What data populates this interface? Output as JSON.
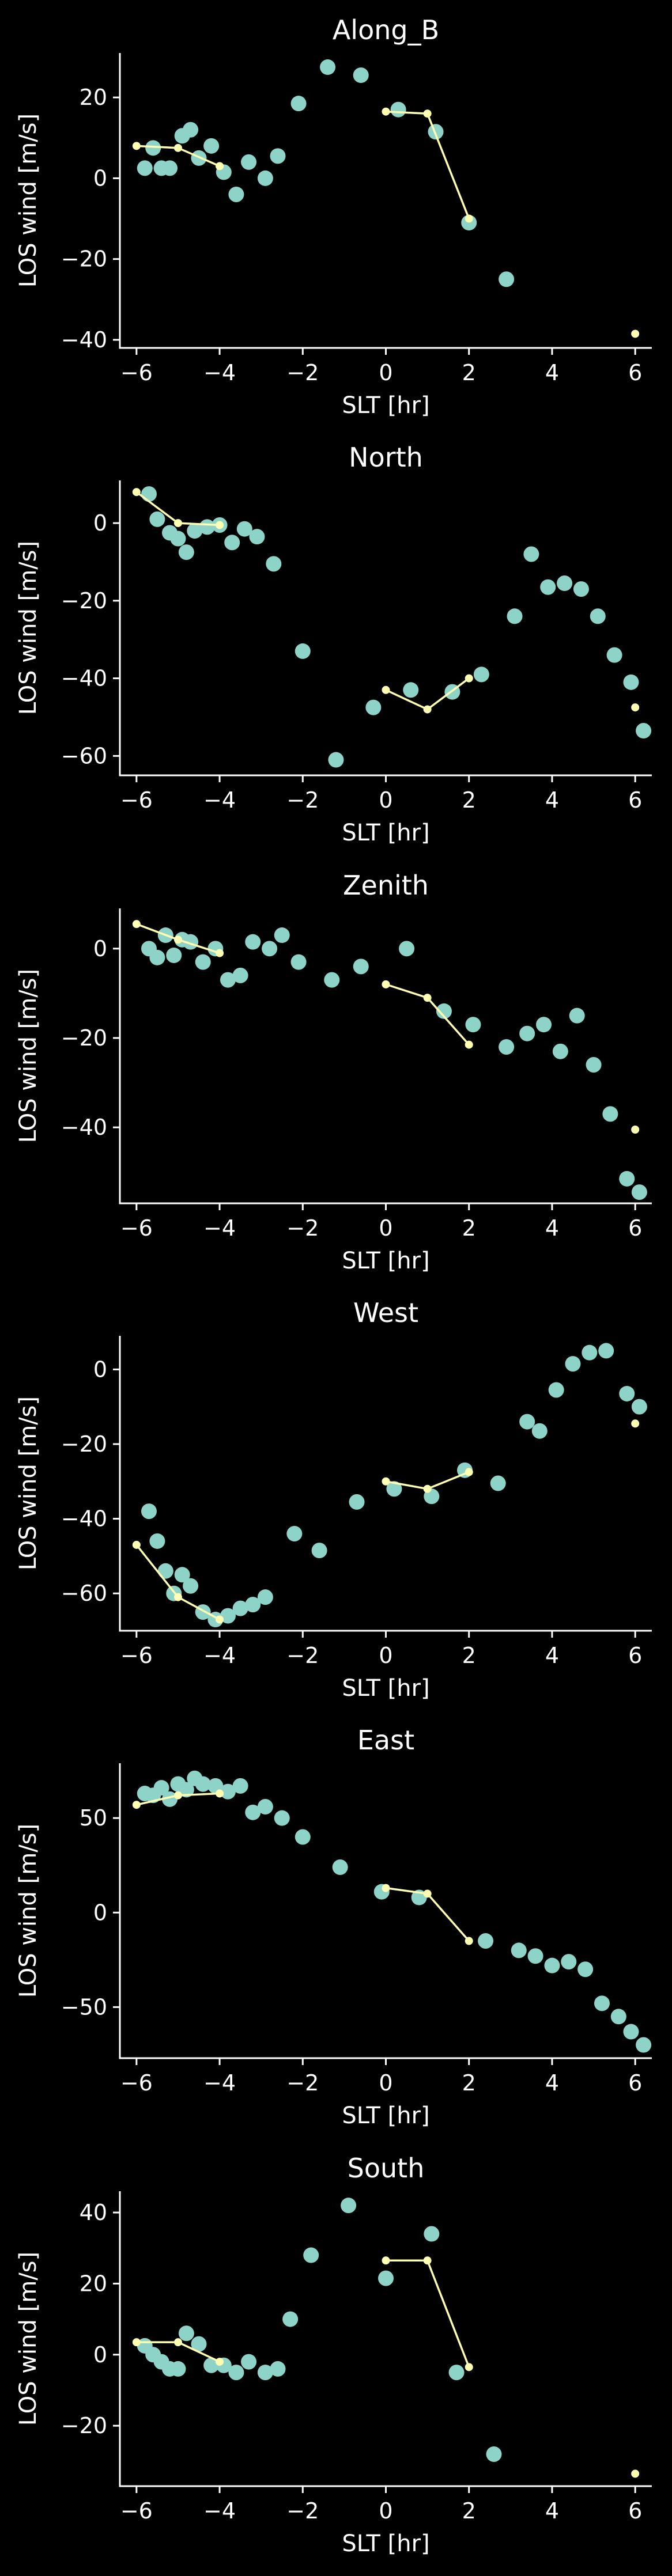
{
  "colors": {
    "background": "#000000",
    "axes": "#ffffff",
    "scatter": "#8dd3c7",
    "line": "#ffffb3"
  },
  "chart_data": [
    {
      "type": "scatter",
      "title": "Along_B",
      "xlabel": "SLT [hr]",
      "ylabel": "LOS wind [m/s]",
      "xlim": [
        -6.4,
        6.4
      ],
      "ylim": [
        -42,
        31
      ],
      "xticks": [
        -6,
        -4,
        -2,
        0,
        2,
        4,
        6
      ],
      "yticks": [
        -40,
        -20,
        0,
        20
      ],
      "scatter": [
        [
          -5.8,
          2.5
        ],
        [
          -5.6,
          7.5
        ],
        [
          -5.4,
          2.5
        ],
        [
          -5.2,
          2.5
        ],
        [
          -4.9,
          10.5
        ],
        [
          -4.7,
          12
        ],
        [
          -4.5,
          5
        ],
        [
          -4.2,
          8
        ],
        [
          -3.9,
          1.5
        ],
        [
          -3.6,
          -4
        ],
        [
          -3.3,
          4
        ],
        [
          -2.9,
          0
        ],
        [
          -2.6,
          5.5
        ],
        [
          -2.1,
          18.5
        ],
        [
          -1.4,
          27.5
        ],
        [
          -0.6,
          25.5
        ],
        [
          0.3,
          17
        ],
        [
          1.2,
          11.5
        ],
        [
          2.0,
          -11
        ],
        [
          2.9,
          -25
        ]
      ],
      "line": [
        [
          -6,
          8
        ],
        [
          -5,
          7.5
        ],
        [
          -4,
          3
        ],
        [
          0,
          16.5
        ],
        [
          1,
          16
        ],
        [
          2,
          -10
        ]
      ],
      "line_breaks": [
        3
      ],
      "extra_points": [
        [
          6,
          -38.5
        ]
      ]
    },
    {
      "type": "scatter",
      "title": "North",
      "xlabel": "SLT [hr]",
      "ylabel": "LOS wind [m/s]",
      "xlim": [
        -6.4,
        6.4
      ],
      "ylim": [
        -65,
        11
      ],
      "xticks": [
        -6,
        -4,
        -2,
        0,
        2,
        4,
        6
      ],
      "yticks": [
        -60,
        -40,
        -20,
        0
      ],
      "scatter": [
        [
          -5.7,
          7.5
        ],
        [
          -5.5,
          1
        ],
        [
          -5.2,
          -2.5
        ],
        [
          -5.0,
          -4
        ],
        [
          -4.8,
          -7.5
        ],
        [
          -4.6,
          -2
        ],
        [
          -4.3,
          -1
        ],
        [
          -4.0,
          -0.5
        ],
        [
          -3.7,
          -5
        ],
        [
          -3.4,
          -1.5
        ],
        [
          -3.1,
          -3.5
        ],
        [
          -2.7,
          -10.5
        ],
        [
          -2.0,
          -33
        ],
        [
          -1.2,
          -61
        ],
        [
          -0.3,
          -47.5
        ],
        [
          0.6,
          -43
        ],
        [
          1.6,
          -43.5
        ],
        [
          2.3,
          -39
        ],
        [
          3.1,
          -24
        ],
        [
          3.5,
          -8
        ],
        [
          3.9,
          -16.5
        ],
        [
          4.3,
          -15.5
        ],
        [
          4.7,
          -17
        ],
        [
          5.1,
          -24
        ],
        [
          5.5,
          -34
        ],
        [
          5.9,
          -41
        ],
        [
          6.2,
          -53.5
        ]
      ],
      "line": [
        [
          -6,
          8
        ],
        [
          -5,
          0
        ],
        [
          -4,
          -0.5
        ],
        [
          0,
          -43
        ],
        [
          1,
          -48
        ],
        [
          2,
          -40
        ]
      ],
      "line_breaks": [
        3
      ],
      "extra_points": [
        [
          6,
          -47.5
        ]
      ]
    },
    {
      "type": "scatter",
      "title": "Zenith",
      "xlabel": "SLT [hr]",
      "ylabel": "LOS wind [m/s]",
      "xlim": [
        -6.4,
        6.4
      ],
      "ylim": [
        -57,
        9
      ],
      "xticks": [
        -6,
        -4,
        -2,
        0,
        2,
        4,
        6
      ],
      "yticks": [
        -40,
        -20,
        0
      ],
      "scatter": [
        [
          -5.7,
          0
        ],
        [
          -5.5,
          -2
        ],
        [
          -5.3,
          3
        ],
        [
          -5.1,
          -1.5
        ],
        [
          -4.9,
          2
        ],
        [
          -4.7,
          1.5
        ],
        [
          -4.4,
          -3
        ],
        [
          -4.1,
          0
        ],
        [
          -3.8,
          -7
        ],
        [
          -3.5,
          -6
        ],
        [
          -3.2,
          1.5
        ],
        [
          -2.8,
          0
        ],
        [
          -2.5,
          3
        ],
        [
          -2.1,
          -3
        ],
        [
          -1.3,
          -7
        ],
        [
          -0.6,
          -4
        ],
        [
          0.5,
          0
        ],
        [
          1.4,
          -14
        ],
        [
          2.1,
          -17
        ],
        [
          2.9,
          -22
        ],
        [
          3.4,
          -19
        ],
        [
          3.8,
          -17
        ],
        [
          4.2,
          -23
        ],
        [
          4.6,
          -15
        ],
        [
          5.0,
          -26
        ],
        [
          5.4,
          -37
        ],
        [
          5.8,
          -51.5
        ],
        [
          6.1,
          -54.5
        ]
      ],
      "line": [
        [
          -6,
          5.5
        ],
        [
          -5,
          2
        ],
        [
          -4,
          -1
        ],
        [
          0,
          -8
        ],
        [
          1,
          -11
        ],
        [
          2,
          -21.5
        ]
      ],
      "line_breaks": [
        3
      ],
      "extra_points": [
        [
          6,
          -40.5
        ]
      ]
    },
    {
      "type": "scatter",
      "title": "West",
      "xlabel": "SLT [hr]",
      "ylabel": "LOS wind [m/s]",
      "xlim": [
        -6.4,
        6.4
      ],
      "ylim": [
        -70,
        9
      ],
      "xticks": [
        -6,
        -4,
        -2,
        0,
        2,
        4,
        6
      ],
      "yticks": [
        -60,
        -40,
        -20,
        0
      ],
      "scatter": [
        [
          -5.7,
          -38
        ],
        [
          -5.5,
          -46
        ],
        [
          -5.3,
          -54
        ],
        [
          -5.1,
          -60
        ],
        [
          -4.9,
          -55
        ],
        [
          -4.7,
          -58
        ],
        [
          -4.4,
          -65
        ],
        [
          -4.1,
          -67
        ],
        [
          -3.8,
          -66
        ],
        [
          -3.5,
          -64
        ],
        [
          -3.2,
          -63
        ],
        [
          -2.9,
          -61
        ],
        [
          -2.2,
          -44
        ],
        [
          -1.6,
          -48.5
        ],
        [
          -0.7,
          -35.5
        ],
        [
          0.2,
          -32
        ],
        [
          1.1,
          -34
        ],
        [
          1.9,
          -27
        ],
        [
          2.7,
          -30.5
        ],
        [
          3.4,
          -14
        ],
        [
          3.7,
          -16.5
        ],
        [
          4.1,
          -5.5
        ],
        [
          4.5,
          1.5
        ],
        [
          4.9,
          4.5
        ],
        [
          5.3,
          5
        ],
        [
          5.8,
          -6.5
        ],
        [
          6.1,
          -10
        ]
      ],
      "line": [
        [
          -6,
          -47
        ],
        [
          -5,
          -61
        ],
        [
          -4,
          -67
        ],
        [
          0,
          -30
        ],
        [
          1,
          -32
        ],
        [
          2,
          -27.5
        ]
      ],
      "line_breaks": [
        3
      ],
      "extra_points": [
        [
          6,
          -14.5
        ]
      ]
    },
    {
      "type": "scatter",
      "title": "East",
      "xlabel": "SLT [hr]",
      "ylabel": "LOS wind [m/s]",
      "xlim": [
        -6.4,
        6.4
      ],
      "ylim": [
        -77,
        79
      ],
      "xticks": [
        -6,
        -4,
        -2,
        0,
        2,
        4,
        6
      ],
      "yticks": [
        -50,
        0,
        50
      ],
      "scatter": [
        [
          -5.8,
          63
        ],
        [
          -5.6,
          62
        ],
        [
          -5.4,
          66
        ],
        [
          -5.2,
          60
        ],
        [
          -5.0,
          68
        ],
        [
          -4.8,
          65
        ],
        [
          -4.6,
          71
        ],
        [
          -4.4,
          68
        ],
        [
          -4.1,
          67
        ],
        [
          -3.8,
          64
        ],
        [
          -3.5,
          67
        ],
        [
          -3.2,
          53
        ],
        [
          -2.9,
          56
        ],
        [
          -2.5,
          50
        ],
        [
          -2.0,
          40
        ],
        [
          -1.1,
          24
        ],
        [
          -0.1,
          11
        ],
        [
          0.8,
          8
        ],
        [
          2.4,
          -15
        ],
        [
          3.2,
          -20
        ],
        [
          3.6,
          -23
        ],
        [
          4.0,
          -28
        ],
        [
          4.4,
          -26
        ],
        [
          4.8,
          -30
        ],
        [
          5.2,
          -48
        ],
        [
          5.6,
          -55
        ],
        [
          5.9,
          -63
        ],
        [
          6.2,
          -70
        ]
      ],
      "line": [
        [
          -6,
          57
        ],
        [
          -5,
          62
        ],
        [
          -4,
          63
        ],
        [
          0,
          13
        ],
        [
          1,
          10
        ],
        [
          2,
          -15
        ]
      ],
      "line_breaks": [
        3
      ],
      "extra_points": []
    },
    {
      "type": "scatter",
      "title": "South",
      "xlabel": "SLT [hr]",
      "ylabel": "LOS wind [m/s]",
      "xlim": [
        -6.4,
        6.4
      ],
      "ylim": [
        -37,
        46
      ],
      "xticks": [
        -6,
        -4,
        -2,
        0,
        2,
        4,
        6
      ],
      "yticks": [
        -20,
        0,
        20,
        40
      ],
      "scatter": [
        [
          -5.8,
          2.5
        ],
        [
          -5.6,
          0
        ],
        [
          -5.4,
          -2
        ],
        [
          -5.2,
          -4
        ],
        [
          -5.0,
          -4
        ],
        [
          -4.8,
          6
        ],
        [
          -4.5,
          3
        ],
        [
          -4.2,
          -3
        ],
        [
          -3.9,
          -3
        ],
        [
          -3.6,
          -5
        ],
        [
          -3.3,
          -2
        ],
        [
          -2.9,
          -5
        ],
        [
          -2.6,
          -4
        ],
        [
          -2.3,
          10
        ],
        [
          -1.8,
          28
        ],
        [
          -0.9,
          42
        ],
        [
          0.0,
          21.5
        ],
        [
          1.1,
          34
        ],
        [
          1.7,
          -5
        ],
        [
          2.6,
          -28
        ]
      ],
      "line": [
        [
          -6,
          3.5
        ],
        [
          -5,
          3.5
        ],
        [
          -4,
          -2
        ],
        [
          0,
          26.5
        ],
        [
          1,
          26.5
        ],
        [
          2,
          -3.5
        ]
      ],
      "line_breaks": [
        3
      ],
      "extra_points": [
        [
          6,
          -33.5
        ]
      ]
    }
  ]
}
